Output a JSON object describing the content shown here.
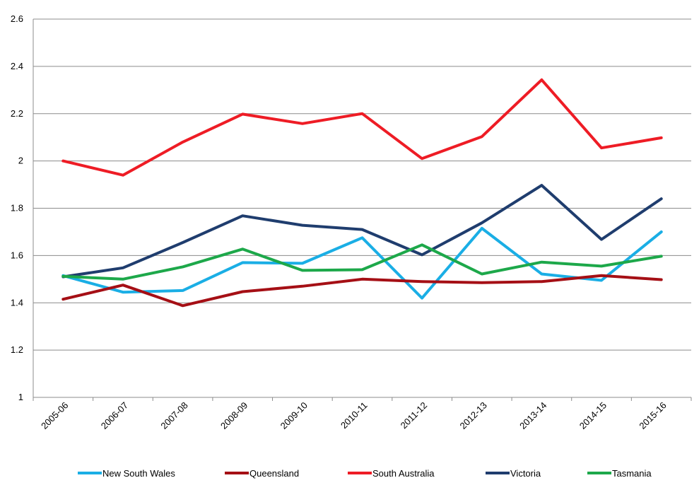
{
  "chart_data": {
    "type": "line",
    "title": "",
    "xlabel": "",
    "ylabel": "",
    "categories": [
      "2005-06",
      "2006-07",
      "2007-08",
      "2008-09",
      "2009-10",
      "2010-11",
      "2011-12",
      "2012-13",
      "2013-14",
      "2014-15",
      "2015-16"
    ],
    "ylim": [
      1,
      2.6
    ],
    "yticks": [
      "1",
      "1.2",
      "1.4",
      "1.6",
      "1.8",
      "2",
      "2.2",
      "2.4",
      "2.6"
    ],
    "grid": "horizontal",
    "legend_position": "bottom",
    "series": [
      {
        "name": "New South Wales",
        "color": "#1aaee5",
        "values": [
          1.515,
          1.445,
          1.452,
          1.57,
          1.567,
          1.675,
          1.42,
          1.715,
          1.522,
          1.495,
          1.7
        ]
      },
      {
        "name": "Queensland",
        "color": "#a50f15",
        "values": [
          1.415,
          1.475,
          1.388,
          1.447,
          1.47,
          1.5,
          1.49,
          1.485,
          1.49,
          1.515,
          1.498
        ]
      },
      {
        "name": "South Australia",
        "color": "#ee1c25",
        "values": [
          2.0,
          1.94,
          2.08,
          2.198,
          2.158,
          2.2,
          2.01,
          2.103,
          2.343,
          2.055,
          2.098
        ]
      },
      {
        "name": "Victoria",
        "color": "#1f3d6e",
        "values": [
          1.51,
          1.548,
          1.655,
          1.768,
          1.728,
          1.71,
          1.603,
          1.738,
          1.897,
          1.668,
          1.84
        ]
      },
      {
        "name": "Tasmania",
        "color": "#1da84a",
        "values": [
          1.512,
          1.5,
          1.552,
          1.627,
          1.537,
          1.54,
          1.645,
          1.522,
          1.572,
          1.555,
          1.597
        ]
      }
    ]
  }
}
